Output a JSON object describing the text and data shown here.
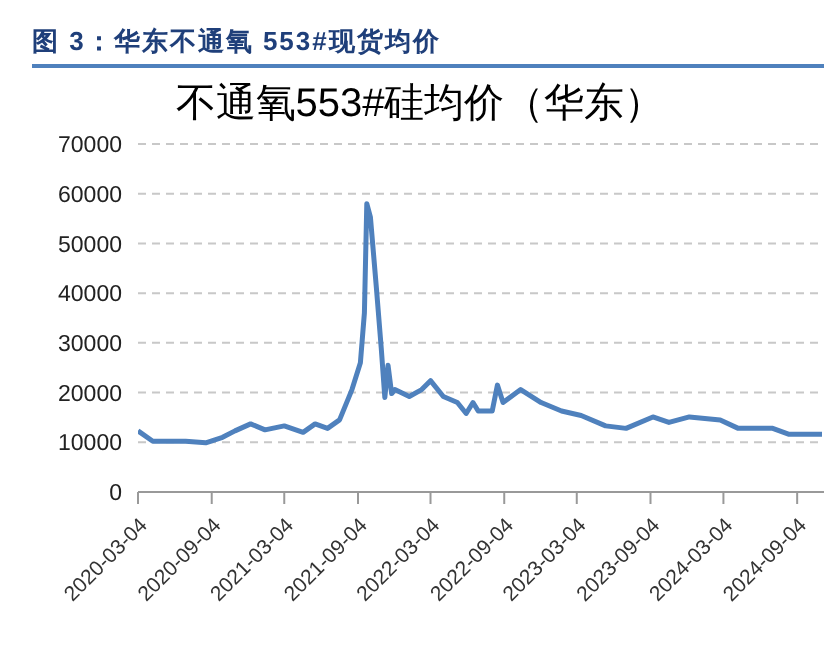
{
  "chart_data": {
    "type": "line",
    "title": "图 3：华东不通氧 553#现货均价",
    "subtitle": "不通氧553#硅均价（华东）",
    "x": [
      "2020-03-04",
      "2020-04-10",
      "2020-07-01",
      "2020-08-20",
      "2020-10-01",
      "2020-11-01",
      "2020-12-10",
      "2021-01-15",
      "2021-03-04",
      "2021-04-20",
      "2021-05-20",
      "2021-06-20",
      "2021-07-20",
      "2021-08-20",
      "2021-09-10",
      "2021-09-20",
      "2021-09-26",
      "2021-10-05",
      "2021-10-20",
      "2021-11-01",
      "2021-11-10",
      "2021-11-18",
      "2021-11-27",
      "2021-12-05",
      "2022-01-10",
      "2022-02-10",
      "2022-03-04",
      "2022-04-05",
      "2022-05-10",
      "2022-06-01",
      "2022-06-18",
      "2022-07-01",
      "2022-08-05",
      "2022-08-18",
      "2022-09-01",
      "2022-10-15",
      "2022-12-05",
      "2023-01-25",
      "2023-03-15",
      "2023-05-15",
      "2023-07-05",
      "2023-09-10",
      "2023-10-20",
      "2023-12-10",
      "2024-02-25",
      "2024-04-10",
      "2024-07-05",
      "2024-08-15",
      "2024-11-05"
    ],
    "series": [
      {
        "color": "#4f81bd",
        "values": [
          12300,
          10200,
          10200,
          9900,
          11000,
          12300,
          13700,
          12500,
          13300,
          12000,
          13700,
          12800,
          14500,
          20600,
          26000,
          36000,
          58000,
          55300,
          41000,
          29000,
          19000,
          25500,
          19800,
          20600,
          19200,
          20600,
          22400,
          19200,
          18000,
          15800,
          18000,
          16300,
          16300,
          21500,
          18000,
          20600,
          18000,
          16300,
          15400,
          13300,
          12800,
          15100,
          14000,
          15100,
          14500,
          12800,
          12800,
          11600,
          11600
        ]
      }
    ],
    "xlim": [
      "2020-03-04",
      "2024-11-10"
    ],
    "xticks": [
      "2020-03-04",
      "2020-09-04",
      "2021-03-04",
      "2021-09-04",
      "2022-03-04",
      "2022-09-04",
      "2023-03-04",
      "2023-09-04",
      "2024-03-04",
      "2024-09-04"
    ],
    "ylim": [
      0,
      70000
    ],
    "yticks": [
      0,
      10000,
      20000,
      30000,
      40000,
      50000,
      60000,
      70000
    ],
    "grid": "y",
    "legend": false,
    "marker": "none",
    "line_style": "solid"
  }
}
